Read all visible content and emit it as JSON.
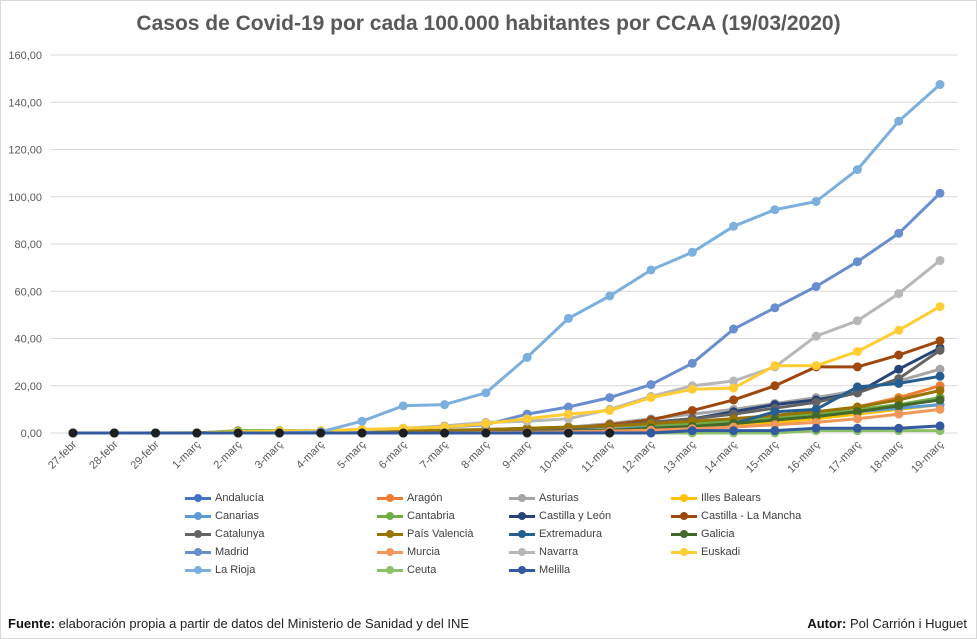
{
  "chart_data": {
    "type": "line",
    "title": "Casos de Covid-19 por cada 100.000 habitantes por CCAA (19/03/2020)",
    "xlabel": "",
    "ylabel": "",
    "ylim": [
      0,
      160
    ],
    "yticks": [
      "0,00",
      "20,00",
      "40,00",
      "60,00",
      "80,00",
      "100,00",
      "120,00",
      "140,00",
      "160,00"
    ],
    "grid": true,
    "legend_position": "bottom",
    "categories": [
      "27-febr",
      "28-febr",
      "29-febr",
      "1-març",
      "2-març",
      "3-març",
      "4-març",
      "5-març",
      "6-març",
      "7-març",
      "8-març",
      "9-març",
      "10-març",
      "11-març",
      "12-març",
      "13-març",
      "14-març",
      "15-març",
      "16-març",
      "17-març",
      "18-març",
      "19-març"
    ],
    "series": [
      {
        "name": "Andalucía",
        "color": "#4472c4",
        "values": [
          0,
          0,
          0,
          0,
          0,
          0,
          0,
          0,
          0,
          0.1,
          0.2,
          0.5,
          0.8,
          1.0,
          2.0,
          2.8,
          3.6,
          5.5,
          7.0,
          9.4,
          11.5,
          15.0
        ]
      },
      {
        "name": "Aragón",
        "color": "#ed7d31",
        "values": [
          0,
          0,
          0,
          0,
          0,
          0,
          0,
          0,
          0,
          0,
          0.2,
          0.3,
          0.5,
          1.0,
          1.5,
          2.5,
          4.0,
          6.0,
          8.0,
          11.0,
          15.0,
          20.0
        ]
      },
      {
        "name": "Asturias",
        "color": "#a5a5a5",
        "values": [
          0,
          0,
          0,
          0,
          0,
          0,
          0,
          0,
          0.2,
          0.5,
          0.9,
          1.5,
          2.5,
          4.0,
          6.0,
          8.0,
          10.0,
          12.5,
          15.0,
          18.0,
          22.0,
          27.0
        ]
      },
      {
        "name": "Illes Balears",
        "color": "#ffc000",
        "values": [
          0,
          0,
          0,
          0.1,
          0.2,
          0.2,
          0.3,
          0.5,
          0.7,
          0.8,
          1.0,
          1.2,
          1.5,
          2.0,
          2.5,
          3.0,
          3.5,
          4.5,
          6.0,
          8.0,
          10.0,
          12.0
        ]
      },
      {
        "name": "Canarias",
        "color": "#5b9bd5",
        "values": [
          0,
          0,
          0,
          0,
          0,
          0,
          0,
          0,
          0,
          0.3,
          0.5,
          0.7,
          1.0,
          1.5,
          2.5,
          3.5,
          4.5,
          6.0,
          7.5,
          9.0,
          10.5,
          12.0
        ]
      },
      {
        "name": "Cantabria",
        "color": "#70ad47",
        "values": [
          0,
          0,
          0,
          0,
          1.0,
          1.0,
          1.0,
          1.0,
          1.0,
          1.0,
          1.5,
          2.0,
          2.5,
          3.0,
          3.5,
          4.0,
          5.0,
          6.5,
          8.0,
          10.0,
          12.0,
          15.0
        ]
      },
      {
        "name": "Castilla y León",
        "color": "#264478",
        "values": [
          0,
          0,
          0,
          0,
          0,
          0,
          0,
          0.1,
          0.2,
          0.5,
          1.0,
          1.5,
          2.0,
          3.0,
          4.5,
          6.0,
          9.0,
          12.0,
          14.0,
          17.0,
          27.0,
          36.0
        ]
      },
      {
        "name": "Castilla - La Mancha",
        "color": "#9e480e",
        "values": [
          0,
          0,
          0,
          0,
          0,
          0,
          0,
          0,
          0,
          0,
          0.5,
          1.0,
          2.0,
          3.5,
          5.5,
          9.5,
          14.0,
          20.0,
          28.0,
          28.0,
          33.0,
          39.0
        ]
      },
      {
        "name": "Catalunya",
        "color": "#636363",
        "values": [
          0,
          0,
          0,
          0,
          0.1,
          0.2,
          0.3,
          0.5,
          0.8,
          1.0,
          1.2,
          1.5,
          2.0,
          3.0,
          4.5,
          6.0,
          8.0,
          10.5,
          13.0,
          17.0,
          23.0,
          35.0
        ]
      },
      {
        "name": "País Valencià",
        "color": "#997300",
        "values": [
          0,
          0,
          0,
          0,
          0.3,
          0.3,
          0.5,
          0.8,
          1.0,
          1.2,
          1.5,
          2.0,
          2.5,
          3.0,
          4.0,
          5.0,
          6.0,
          7.5,
          9.0,
          11.0,
          14.0,
          18.0
        ]
      },
      {
        "name": "Extremadura",
        "color": "#255e91",
        "values": [
          0,
          0,
          0,
          0,
          0,
          0,
          0,
          0,
          0,
          0,
          0,
          0.3,
          0.6,
          1.0,
          1.5,
          2.5,
          4.0,
          9.0,
          10.0,
          19.5,
          21.0,
          24.0
        ]
      },
      {
        "name": "Galicia",
        "color": "#43682b",
        "values": [
          0,
          0,
          0,
          0,
          0,
          0,
          0,
          0,
          0,
          0,
          0.2,
          0.5,
          0.8,
          1.2,
          2.0,
          2.8,
          4.0,
          5.5,
          7.0,
          9.0,
          11.5,
          14.0
        ]
      },
      {
        "name": "Madrid",
        "color": "#698ed0",
        "values": [
          0,
          0,
          0,
          0,
          0.2,
          0.5,
          0.8,
          1.2,
          2.0,
          2.5,
          3.5,
          8.0,
          11.0,
          15.0,
          20.5,
          29.5,
          44.0,
          53.0,
          62.0,
          72.5,
          84.5,
          101.5
        ]
      },
      {
        "name": "Murcia",
        "color": "#f1975a",
        "values": [
          0,
          0,
          0,
          0,
          0,
          0,
          0,
          0,
          0,
          0,
          0.2,
          0.3,
          0.5,
          0.8,
          1.2,
          1.8,
          2.5,
          3.5,
          4.5,
          6.0,
          8.0,
          10.0
        ]
      },
      {
        "name": "Navarra",
        "color": "#b7b7b7",
        "values": [
          0,
          0,
          0,
          0,
          0,
          0.5,
          1.0,
          1.5,
          2.0,
          3.0,
          4.5,
          5.0,
          6.0,
          10.0,
          15.5,
          20.0,
          22.0,
          28.0,
          41.0,
          47.5,
          59.0,
          73.0
        ]
      },
      {
        "name": "Euskadi",
        "color": "#ffcd33",
        "values": [
          0,
          0,
          0,
          0,
          0.5,
          0.8,
          1.0,
          1.5,
          2.0,
          2.5,
          4.0,
          6.0,
          8.0,
          9.5,
          15.0,
          18.5,
          19.0,
          28.5,
          28.5,
          34.5,
          43.5,
          53.5
        ]
      },
      {
        "name": "La Rioja",
        "color": "#7cafdd",
        "values": [
          0,
          0,
          0,
          0,
          0,
          0,
          0.5,
          5.0,
          11.5,
          12.0,
          17.0,
          32.0,
          48.5,
          58.0,
          69.0,
          76.5,
          87.5,
          94.5,
          98.0,
          111.5,
          132.0,
          147.5
        ]
      },
      {
        "name": "Ceuta",
        "color": "#8cc168",
        "values": [
          0,
          0,
          0,
          0,
          0,
          0,
          0,
          0,
          0,
          0,
          0,
          0,
          0,
          0,
          0,
          0,
          0,
          0,
          1.0,
          1.0,
          1.0,
          1.0
        ]
      },
      {
        "name": "Melilla",
        "color": "#335aa1",
        "values": [
          0,
          0,
          0,
          0,
          0,
          0,
          0,
          0,
          0,
          0,
          0,
          0,
          0,
          0,
          0,
          1.0,
          1.0,
          1.0,
          2.0,
          2.0,
          2.0,
          3.0
        ]
      }
    ]
  },
  "footer": {
    "source_label": "Fuente:",
    "source_text": " elaboración propia a partir de datos del Ministerio de Sanidad y del INE",
    "author_label": "Autor:",
    "author_text": " Pol Carrión i Huguet"
  }
}
